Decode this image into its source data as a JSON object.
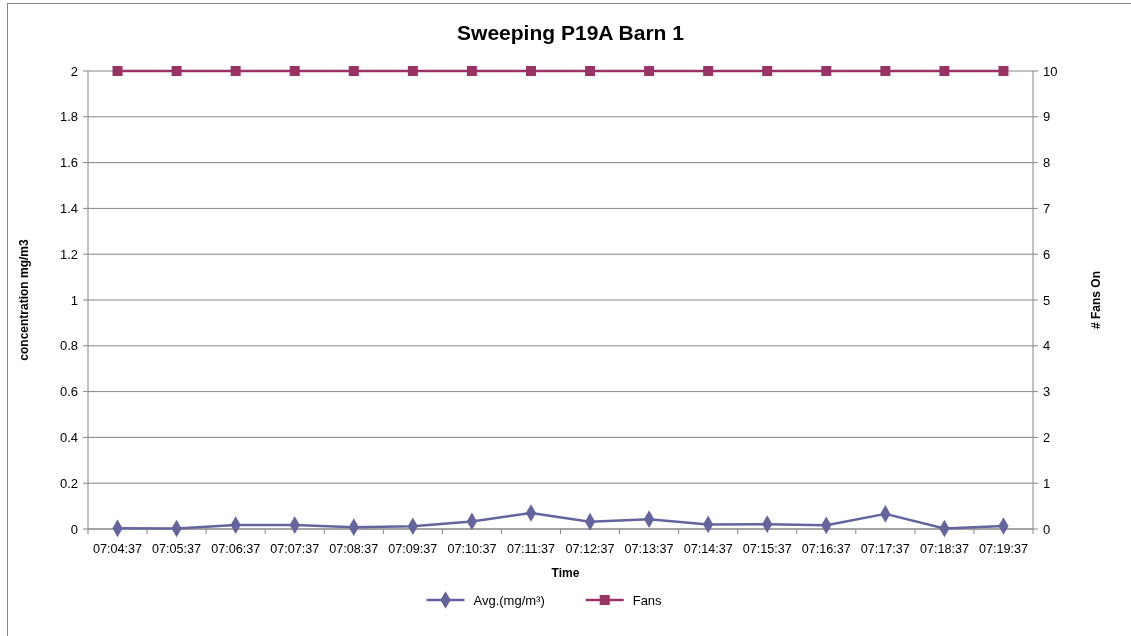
{
  "chart_data": {
    "type": "line",
    "title": "Sweeping P19A Barn 1",
    "xlabel": "Time",
    "ylabel": "concentration mg/m3",
    "y2label": "# Fans On",
    "categories": [
      "07:04:37",
      "07:05:37",
      "07:06:37",
      "07:07:37",
      "07:08:37",
      "07:09:37",
      "07:10:37",
      "07:11:37",
      "07:12:37",
      "07:13:37",
      "07:14:37",
      "07:15:37",
      "07:16:37",
      "07:17:37",
      "07:18:37",
      "07:19:37"
    ],
    "series": [
      {
        "name": "Avg.(mg/m³)",
        "color": "#64649e",
        "marker": "diamond",
        "values": [
          0.003,
          0.002,
          0.017,
          0.017,
          0.008,
          0.012,
          0.033,
          0.07,
          0.032,
          0.043,
          0.02,
          0.021,
          0.016,
          0.066,
          0.002,
          0.013
        ]
      },
      {
        "name": "Fans",
        "color": "#993366",
        "marker": "square",
        "axis": "y2",
        "values": [
          10,
          10,
          10,
          10,
          10,
          10,
          10,
          10,
          10,
          10,
          10,
          10,
          10,
          10,
          10,
          10
        ]
      }
    ],
    "ylim": [
      0,
      2
    ],
    "yticks": [
      0,
      0.2,
      0.4,
      0.6,
      0.8,
      1,
      1.2,
      1.4,
      1.6,
      1.8,
      2
    ],
    "y2lim": [
      0,
      10
    ],
    "y2ticks": [
      0,
      1,
      2,
      3,
      4,
      5,
      6,
      7,
      8,
      9,
      10
    ],
    "grid": "y",
    "legend": "bottom"
  }
}
